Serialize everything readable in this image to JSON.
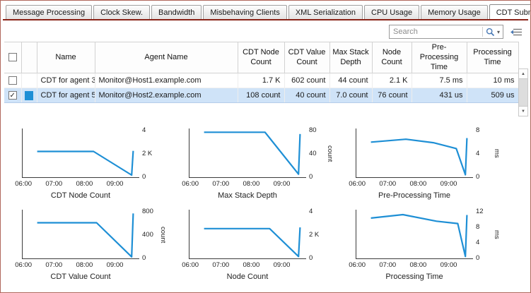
{
  "icons": {
    "scroll_up": "▲",
    "scroll_down": "▼",
    "caret_down": "▾",
    "checkmark": "✓"
  },
  "colors": {
    "tab_underline": "#8a2418",
    "selection_bg": "#cfe3f8",
    "series_blue": "#1e8fd5"
  },
  "tabs": [
    {
      "label": "Message Processing",
      "active": false
    },
    {
      "label": "Clock Skew.",
      "active": false
    },
    {
      "label": "Bandwidth",
      "active": false
    },
    {
      "label": "Misbehaving Clients",
      "active": false
    },
    {
      "label": "XML Serialization",
      "active": false
    },
    {
      "label": "CPU Usage",
      "active": false
    },
    {
      "label": "Memory Usage",
      "active": false
    },
    {
      "label": "CDT Submission",
      "active": true
    }
  ],
  "search": {
    "placeholder": "Search"
  },
  "table": {
    "columns": [
      "Name",
      "Agent Name",
      "CDT Node Count",
      "CDT Value Count",
      "Max Stack Depth",
      "Node Count",
      "Pre-Processing Time",
      "Processing Time"
    ],
    "rows": [
      {
        "checked": false,
        "selected": false,
        "swatch": null,
        "name": "CDT for agent 3",
        "agent_name": "Monitor@Host1.example.com",
        "values": [
          "1.7 K",
          "602 count",
          "44 count",
          "2.1 K",
          "7.5 ms",
          "10 ms"
        ]
      },
      {
        "checked": true,
        "selected": true,
        "swatch": "#1e8fd5",
        "name": "CDT for agent 5",
        "agent_name": "Monitor@Host2.example.com",
        "values": [
          "108 count",
          "40 count",
          "7.0 count",
          "76 count",
          "431 us",
          "509 us"
        ]
      }
    ]
  },
  "chart_data": [
    {
      "type": "line",
      "title": "CDT Node Count",
      "unit": null,
      "ymax": 4,
      "xdomain": [
        5.95,
        9.8
      ],
      "yticks": [
        {
          "v": 0,
          "label": "0"
        },
        {
          "v": 2,
          "label": "2 K"
        },
        {
          "v": 4,
          "label": "4"
        }
      ],
      "xticks": [
        {
          "v": 6,
          "label": "06:00"
        },
        {
          "v": 7,
          "label": "07:00"
        },
        {
          "v": 8,
          "label": "08:00"
        },
        {
          "v": 9,
          "label": "09:00"
        }
      ],
      "points": [
        [
          6.45,
          2.15
        ],
        [
          8.3,
          2.15
        ],
        [
          9.55,
          0.12
        ],
        [
          9.6,
          2.2
        ]
      ]
    },
    {
      "type": "line",
      "title": "Max Stack Depth",
      "unit": "count",
      "ymax": 80,
      "xdomain": [
        5.95,
        9.8
      ],
      "yticks": [
        {
          "v": 0,
          "label": "0"
        },
        {
          "v": 40,
          "label": "40"
        },
        {
          "v": 80,
          "label": "80"
        }
      ],
      "xticks": [
        {
          "v": 6,
          "label": "06:00"
        },
        {
          "v": 7,
          "label": "07:00"
        },
        {
          "v": 8,
          "label": "08:00"
        },
        {
          "v": 9,
          "label": "09:00"
        }
      ],
      "points": [
        [
          6.45,
          76
        ],
        [
          8.45,
          76
        ],
        [
          9.55,
          4
        ],
        [
          9.6,
          73
        ]
      ]
    },
    {
      "type": "line",
      "title": "Pre-Processing Time",
      "unit": "ms",
      "ymax": 8,
      "xdomain": [
        5.95,
        9.8
      ],
      "yticks": [
        {
          "v": 0,
          "label": "0"
        },
        {
          "v": 4,
          "label": "4"
        },
        {
          "v": 8,
          "label": "8"
        }
      ],
      "xticks": [
        {
          "v": 6,
          "label": "06:00"
        },
        {
          "v": 7,
          "label": "07:00"
        },
        {
          "v": 8,
          "label": "08:00"
        },
        {
          "v": 9,
          "label": "09:00"
        }
      ],
      "points": [
        [
          6.45,
          5.9
        ],
        [
          7.6,
          6.4
        ],
        [
          8.5,
          5.8
        ],
        [
          9.25,
          4.8
        ],
        [
          9.55,
          0.3
        ],
        [
          9.6,
          6.6
        ]
      ]
    },
    {
      "type": "line",
      "title": "CDT Value Count",
      "unit": "count",
      "ymax": 800,
      "xdomain": [
        5.95,
        9.8
      ],
      "yticks": [
        {
          "v": 0,
          "label": "0"
        },
        {
          "v": 400,
          "label": "400"
        },
        {
          "v": 800,
          "label": "800"
        }
      ],
      "xticks": [
        {
          "v": 6,
          "label": "06:00"
        },
        {
          "v": 7,
          "label": "07:00"
        },
        {
          "v": 8,
          "label": "08:00"
        },
        {
          "v": 9,
          "label": "09:00"
        }
      ],
      "points": [
        [
          6.45,
          600
        ],
        [
          8.4,
          600
        ],
        [
          9.55,
          15
        ],
        [
          9.6,
          760
        ]
      ]
    },
    {
      "type": "line",
      "title": "Node Count",
      "unit": null,
      "ymax": 4,
      "xdomain": [
        5.95,
        9.8
      ],
      "yticks": [
        {
          "v": 0,
          "label": "0"
        },
        {
          "v": 2,
          "label": "2 K"
        },
        {
          "v": 4,
          "label": "4"
        }
      ],
      "xticks": [
        {
          "v": 6,
          "label": "06:00"
        },
        {
          "v": 7,
          "label": "07:00"
        },
        {
          "v": 8,
          "label": "08:00"
        },
        {
          "v": 9,
          "label": "09:00"
        }
      ],
      "points": [
        [
          6.45,
          2.5
        ],
        [
          8.6,
          2.5
        ],
        [
          9.55,
          0.1
        ],
        [
          9.6,
          2.6
        ]
      ]
    },
    {
      "type": "line",
      "title": "Processing Time",
      "unit": "ms",
      "ymax": 12,
      "xdomain": [
        5.95,
        9.8
      ],
      "yticks": [
        {
          "v": 0,
          "label": "0"
        },
        {
          "v": 4,
          "label": "4"
        },
        {
          "v": 8,
          "label": "8"
        },
        {
          "v": 12,
          "label": "12"
        }
      ],
      "xticks": [
        {
          "v": 6,
          "label": "06:00"
        },
        {
          "v": 7,
          "label": "07:00"
        },
        {
          "v": 8,
          "label": "08:00"
        },
        {
          "v": 9,
          "label": "09:00"
        }
      ],
      "points": [
        [
          6.45,
          10.2
        ],
        [
          7.5,
          11.1
        ],
        [
          8.6,
          9.4
        ],
        [
          9.3,
          8.8
        ],
        [
          9.55,
          0.3
        ],
        [
          9.6,
          11
        ]
      ]
    }
  ]
}
